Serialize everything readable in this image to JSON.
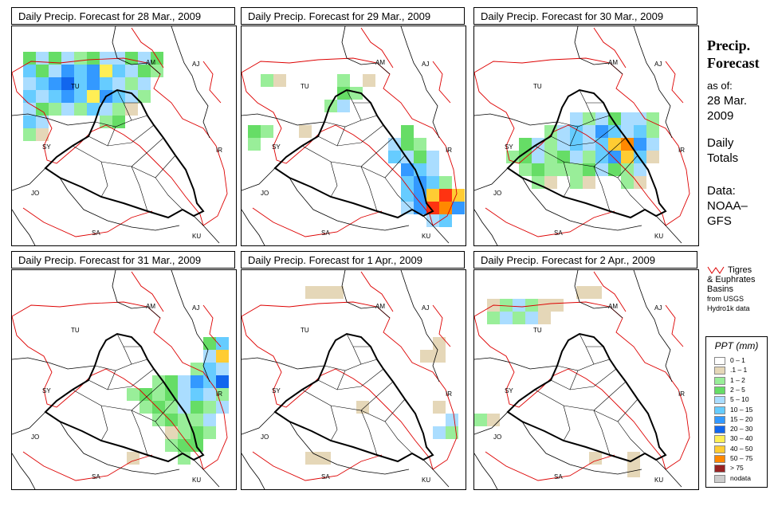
{
  "panels": [
    {
      "title": "Daily Precip. Forecast for  28 Mar., 2009",
      "cells": [
        [
          0,
          0,
          "#66dd66"
        ],
        [
          1,
          0,
          "#aaddff"
        ],
        [
          2,
          0,
          "#66dd66"
        ],
        [
          3,
          0,
          "#aaddff"
        ],
        [
          4,
          0,
          "#99ee99"
        ],
        [
          5,
          0,
          "#66dd66"
        ],
        [
          6,
          0,
          "#aaddff"
        ],
        [
          7,
          0,
          "#aaddff"
        ],
        [
          8,
          0,
          "#66dd66"
        ],
        [
          9,
          0,
          "#aaddff"
        ],
        [
          10,
          0,
          "#66dd66"
        ],
        [
          0,
          1,
          "#66ccff"
        ],
        [
          1,
          1,
          "#66dd66"
        ],
        [
          2,
          1,
          "#aaddff"
        ],
        [
          3,
          1,
          "#3399ff"
        ],
        [
          4,
          1,
          "#66ccff"
        ],
        [
          5,
          1,
          "#3399ff"
        ],
        [
          6,
          1,
          "#ffee55"
        ],
        [
          7,
          1,
          "#66ccff"
        ],
        [
          8,
          1,
          "#aaddff"
        ],
        [
          9,
          1,
          "#66dd66"
        ],
        [
          10,
          1,
          "#99ee99"
        ],
        [
          0,
          2,
          "#aaddff"
        ],
        [
          1,
          2,
          "#66ccff"
        ],
        [
          2,
          2,
          "#3399ff"
        ],
        [
          3,
          2,
          "#1166ee"
        ],
        [
          4,
          2,
          "#66ccff"
        ],
        [
          5,
          2,
          "#3399ff"
        ],
        [
          6,
          2,
          "#66ccff"
        ],
        [
          7,
          2,
          "#aaddff"
        ],
        [
          8,
          2,
          "#99ee99"
        ],
        [
          9,
          2,
          "#aaddff"
        ],
        [
          0,
          3,
          "#66ccff"
        ],
        [
          1,
          3,
          "#aaddff"
        ],
        [
          2,
          3,
          "#66ccff"
        ],
        [
          3,
          3,
          "#3399ff"
        ],
        [
          4,
          3,
          "#66ccff"
        ],
        [
          5,
          3,
          "#ffee55"
        ],
        [
          6,
          3,
          "#3399ff"
        ],
        [
          7,
          3,
          "#66ccff"
        ],
        [
          8,
          3,
          "#aaddff"
        ],
        [
          9,
          3,
          "#99ee99"
        ],
        [
          0,
          4,
          "#aaddff"
        ],
        [
          1,
          4,
          "#66dd66"
        ],
        [
          2,
          4,
          "#99ee99"
        ],
        [
          3,
          4,
          "#aaddff"
        ],
        [
          4,
          4,
          "#99ee99"
        ],
        [
          5,
          4,
          "#66ccff"
        ],
        [
          6,
          4,
          "#aaddff"
        ],
        [
          7,
          4,
          "#99ee99"
        ],
        [
          8,
          4,
          "#e5d7b8"
        ],
        [
          0,
          5,
          "#66ccff"
        ],
        [
          1,
          5,
          "#aaddff"
        ],
        [
          6,
          5,
          "#99ee99"
        ],
        [
          7,
          5,
          "#66dd66"
        ],
        [
          0,
          6,
          "#99ee99"
        ],
        [
          1,
          6,
          "#e5d7b8"
        ]
      ],
      "cell_origin": [
        14,
        32
      ],
      "cell_size": 16
    },
    {
      "title": "Daily Precip. Forecast for  29 Mar., 2009",
      "cells": [
        [
          1,
          0,
          "#99ee99"
        ],
        [
          2,
          0,
          "#e5d7b8"
        ],
        [
          7,
          0,
          "#99ee99"
        ],
        [
          9,
          0,
          "#e5d7b8"
        ],
        [
          7,
          1,
          "#66dd66"
        ],
        [
          8,
          1,
          "#99ee99"
        ],
        [
          6,
          2,
          "#99ee99"
        ],
        [
          7,
          2,
          "#aaddff"
        ],
        [
          0,
          4,
          "#66dd66"
        ],
        [
          1,
          4,
          "#99ee99"
        ],
        [
          4,
          4,
          "#e5d7b8"
        ],
        [
          12,
          4,
          "#66dd66"
        ],
        [
          0,
          5,
          "#99ee99"
        ],
        [
          11,
          5,
          "#aaddff"
        ],
        [
          12,
          5,
          "#66dd66"
        ],
        [
          13,
          5,
          "#99ee99"
        ],
        [
          11,
          6,
          "#66ccff"
        ],
        [
          12,
          6,
          "#aaddff"
        ],
        [
          13,
          6,
          "#66dd66"
        ],
        [
          14,
          6,
          "#aaddff"
        ],
        [
          12,
          7,
          "#3399ff"
        ],
        [
          13,
          7,
          "#66ccff"
        ],
        [
          14,
          7,
          "#aaddff"
        ],
        [
          12,
          8,
          "#66ccff"
        ],
        [
          13,
          8,
          "#3399ff"
        ],
        [
          14,
          8,
          "#66ccff"
        ],
        [
          15,
          8,
          "#99ee99"
        ],
        [
          12,
          9,
          "#66ccff"
        ],
        [
          13,
          9,
          "#3399ff"
        ],
        [
          14,
          9,
          "#ffcc33"
        ],
        [
          15,
          9,
          "#ff3311"
        ],
        [
          16,
          9,
          "#ffcc33"
        ],
        [
          12,
          10,
          "#aaddff"
        ],
        [
          13,
          10,
          "#3399ff"
        ],
        [
          14,
          10,
          "#ff3311"
        ],
        [
          15,
          10,
          "#ff8800"
        ],
        [
          16,
          10,
          "#3399ff"
        ],
        [
          14,
          11,
          "#aaddff"
        ],
        [
          15,
          11,
          "#66ccff"
        ]
      ],
      "cell_origin": [
        8,
        60
      ],
      "cell_size": 16
    },
    {
      "title": "Daily Precip. Forecast for  30 Mar., 2009",
      "cells": [
        [
          7,
          3,
          "#aaddff"
        ],
        [
          8,
          3,
          "#99ee99"
        ],
        [
          9,
          3,
          "#aaddff"
        ],
        [
          10,
          3,
          "#66dd66"
        ],
        [
          11,
          3,
          "#aaddff"
        ],
        [
          12,
          3,
          "#aaddff"
        ],
        [
          13,
          3,
          "#99ee99"
        ],
        [
          5,
          4,
          "#99ee99"
        ],
        [
          6,
          4,
          "#aaddff"
        ],
        [
          7,
          4,
          "#66ccff"
        ],
        [
          8,
          4,
          "#aaddff"
        ],
        [
          9,
          4,
          "#3399ff"
        ],
        [
          10,
          4,
          "#66ccff"
        ],
        [
          11,
          4,
          "#aaddff"
        ],
        [
          12,
          4,
          "#66ccff"
        ],
        [
          13,
          4,
          "#99ee99"
        ],
        [
          3,
          5,
          "#66dd66"
        ],
        [
          4,
          5,
          "#aaddff"
        ],
        [
          5,
          5,
          "#99ee99"
        ],
        [
          6,
          5,
          "#aaddff"
        ],
        [
          7,
          5,
          "#66ccff"
        ],
        [
          8,
          5,
          "#aaddff"
        ],
        [
          9,
          5,
          "#66ccff"
        ],
        [
          10,
          5,
          "#ffcc33"
        ],
        [
          11,
          5,
          "#ff8800"
        ],
        [
          12,
          5,
          "#3399ff"
        ],
        [
          13,
          5,
          "#aaddff"
        ],
        [
          2,
          6,
          "#99ee99"
        ],
        [
          3,
          6,
          "#66dd66"
        ],
        [
          4,
          6,
          "#aaddff"
        ],
        [
          5,
          6,
          "#99ee99"
        ],
        [
          6,
          6,
          "#66dd66"
        ],
        [
          7,
          6,
          "#aaddff"
        ],
        [
          8,
          6,
          "#99ee99"
        ],
        [
          9,
          6,
          "#66ccff"
        ],
        [
          10,
          6,
          "#3399ff"
        ],
        [
          11,
          6,
          "#ffcc33"
        ],
        [
          12,
          6,
          "#66ccff"
        ],
        [
          13,
          6,
          "#e5d7b8"
        ],
        [
          3,
          7,
          "#99ee99"
        ],
        [
          4,
          7,
          "#66dd66"
        ],
        [
          5,
          7,
          "#99ee99"
        ],
        [
          6,
          7,
          "#99ee99"
        ],
        [
          7,
          7,
          "#99ee99"
        ],
        [
          8,
          7,
          "#66dd66"
        ],
        [
          9,
          7,
          "#aaddff"
        ],
        [
          10,
          7,
          "#66dd66"
        ],
        [
          11,
          7,
          "#99ee99"
        ],
        [
          12,
          7,
          "#aaddff"
        ],
        [
          4,
          8,
          "#99ee99"
        ],
        [
          5,
          8,
          "#e5d7b8"
        ],
        [
          7,
          8,
          "#99ee99"
        ],
        [
          8,
          8,
          "#e5d7b8"
        ],
        [
          11,
          8,
          "#99ee99"
        ],
        [
          12,
          8,
          "#e5d7b8"
        ]
      ],
      "cell_origin": [
        8,
        60
      ],
      "cell_size": 16
    },
    {
      "title": "Daily Precip. Forecast for  31 Mar., 2009",
      "cells": [
        [
          15,
          4,
          "#66dd66"
        ],
        [
          16,
          4,
          "#66ccff"
        ],
        [
          15,
          5,
          "#aaddff"
        ],
        [
          16,
          5,
          "#ffcc33"
        ],
        [
          14,
          6,
          "#99ee99"
        ],
        [
          15,
          6,
          "#66ccff"
        ],
        [
          16,
          6,
          "#aaddff"
        ],
        [
          11,
          7,
          "#99ee99"
        ],
        [
          12,
          7,
          "#66dd66"
        ],
        [
          13,
          7,
          "#aaddff"
        ],
        [
          14,
          7,
          "#3399ff"
        ],
        [
          15,
          7,
          "#66ccff"
        ],
        [
          16,
          7,
          "#1166ee"
        ],
        [
          9,
          8,
          "#99ee99"
        ],
        [
          10,
          8,
          "#66dd66"
        ],
        [
          11,
          8,
          "#99ee99"
        ],
        [
          12,
          8,
          "#66dd66"
        ],
        [
          13,
          8,
          "#aaddff"
        ],
        [
          14,
          8,
          "#66ccff"
        ],
        [
          15,
          8,
          "#aaddff"
        ],
        [
          16,
          8,
          "#99ee99"
        ],
        [
          10,
          9,
          "#99ee99"
        ],
        [
          11,
          9,
          "#66dd66"
        ],
        [
          12,
          9,
          "#99ee99"
        ],
        [
          13,
          9,
          "#aaddff"
        ],
        [
          14,
          9,
          "#66dd66"
        ],
        [
          15,
          9,
          "#99ee99"
        ],
        [
          16,
          9,
          "#aaddff"
        ],
        [
          11,
          10,
          "#99ee99"
        ],
        [
          12,
          10,
          "#66dd66"
        ],
        [
          13,
          10,
          "#99ee99"
        ],
        [
          14,
          10,
          "#99ee99"
        ],
        [
          15,
          10,
          "#aaddff"
        ],
        [
          12,
          11,
          "#e5d7b8"
        ],
        [
          13,
          11,
          "#99ee99"
        ],
        [
          14,
          11,
          "#66dd66"
        ],
        [
          15,
          11,
          "#99ee99"
        ],
        [
          12,
          12,
          "#99ee99"
        ],
        [
          13,
          12,
          "#66dd66"
        ],
        [
          14,
          12,
          "#66dd66"
        ],
        [
          9,
          13,
          "#e5d7b8"
        ],
        [
          13,
          13,
          "#99ee99"
        ]
      ],
      "cell_origin": [
        0,
        20
      ],
      "cell_size": 16
    },
    {
      "title": "Daily Precip. Forecast for  1 Apr., 2009",
      "cells": [
        [
          5,
          0,
          "#e5d7b8"
        ],
        [
          6,
          0,
          "#e5d7b8"
        ],
        [
          7,
          0,
          "#e5d7b8"
        ],
        [
          15,
          4,
          "#e5d7b8"
        ],
        [
          14,
          5,
          "#e5d7b8"
        ],
        [
          15,
          5,
          "#e5d7b8"
        ],
        [
          9,
          9,
          "#e5d7b8"
        ],
        [
          15,
          9,
          "#e5d7b8"
        ],
        [
          16,
          10,
          "#aaddff"
        ],
        [
          15,
          11,
          "#aaddff"
        ],
        [
          16,
          11,
          "#99ee99"
        ],
        [
          5,
          13,
          "#e5d7b8"
        ],
        [
          6,
          13,
          "#e5d7b8"
        ]
      ],
      "cell_origin": [
        0,
        20
      ],
      "cell_size": 16
    },
    {
      "title": "Daily Precip. Forecast for  2 Apr., 2009",
      "cells": [
        [
          8,
          0,
          "#e5d7b8"
        ],
        [
          9,
          0,
          "#e5d7b8"
        ],
        [
          1,
          1,
          "#e5d7b8"
        ],
        [
          2,
          1,
          "#99ee99"
        ],
        [
          3,
          1,
          "#aaddff"
        ],
        [
          4,
          1,
          "#99ee99"
        ],
        [
          5,
          1,
          "#e5d7b8"
        ],
        [
          6,
          1,
          "#e5d7b8"
        ],
        [
          1,
          2,
          "#99ee99"
        ],
        [
          2,
          2,
          "#aaddff"
        ],
        [
          3,
          2,
          "#99ee99"
        ],
        [
          4,
          2,
          "#aaddff"
        ],
        [
          5,
          2,
          "#e5d7b8"
        ],
        [
          0,
          10,
          "#99ee99"
        ],
        [
          1,
          10,
          "#e5d7b8"
        ],
        [
          9,
          13,
          "#e5d7b8"
        ],
        [
          12,
          13,
          "#e5d7b8"
        ],
        [
          12,
          14,
          "#e5d7b8"
        ]
      ],
      "cell_origin": [
        0,
        20
      ],
      "cell_size": 16
    }
  ],
  "sidebar": {
    "heading": [
      "Precip.",
      "Forecast"
    ],
    "as_of_label": "as of:",
    "as_of_date_1": "28 Mar.",
    "as_of_date_2": "2009",
    "daily_1": "Daily",
    "daily_2": "Totals",
    "data_1": "Data:",
    "data_2": "NOAA–",
    "data_3": "GFS"
  },
  "basin_note": {
    "line1": "Tigres",
    "line2": "& Euphrates",
    "line3": "Basins",
    "line4": "from USGS",
    "line5": "Hydro1k data",
    "basin_color": "#dd0000"
  },
  "legend": {
    "title": "PPT (mm)",
    "items": [
      {
        "label": "0 – 1",
        "color": "#ffffff"
      },
      {
        "label": ".1 – 1",
        "color": "#e5d7b8"
      },
      {
        "label": "1 – 2",
        "color": "#99ee99"
      },
      {
        "label": "2 – 5",
        "color": "#66dd66"
      },
      {
        "label": "5 – 10",
        "color": "#aaddff"
      },
      {
        "label": "10 – 15",
        "color": "#66ccff"
      },
      {
        "label": "15 – 20",
        "color": "#3399ff"
      },
      {
        "label": "20 – 30",
        "color": "#1166ee"
      },
      {
        "label": "30 – 40",
        "color": "#ffee55"
      },
      {
        "label": "40 – 50",
        "color": "#ffcc33"
      },
      {
        "label": "50 – 75",
        "color": "#ff8800"
      },
      {
        "label": "> 75",
        "color": "#992222"
      },
      {
        "label": "nodata",
        "color": "#cccccc"
      }
    ]
  },
  "country_labels": [
    "AM",
    "AJ",
    "TU",
    "SY",
    "IR",
    "JO",
    "SA",
    "KU"
  ]
}
